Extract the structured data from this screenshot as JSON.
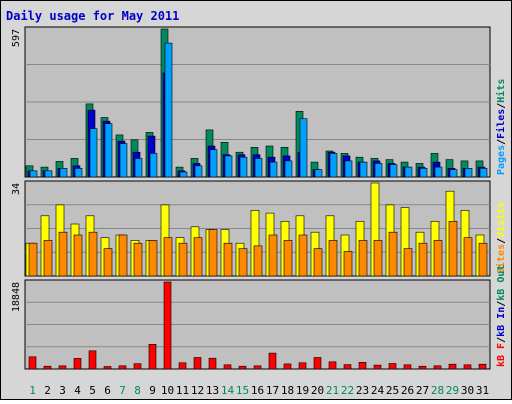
{
  "title": "Daily usage for May 2011",
  "colors": {
    "background": "#d6d6d6",
    "plot_bg": "#c0c0c0",
    "title": "#0000cc",
    "pages": "#00a0ff",
    "files": "#0000cc",
    "hits": "#008a5e",
    "visits": "#ffff00",
    "sites": "#ff8800",
    "kb_out": "#008a5e",
    "kb_in": "#0000cc",
    "kb_f": "#ff0000",
    "weekend_label": "#008a5e",
    "weekday_label": "#000000"
  },
  "chart_data": {
    "type": "bar",
    "title": "Daily usage for May 2011",
    "categories": [
      "1",
      "2",
      "3",
      "4",
      "5",
      "6",
      "7",
      "8",
      "9",
      "10",
      "11",
      "12",
      "13",
      "14",
      "15",
      "16",
      "17",
      "18",
      "19",
      "20",
      "21",
      "22",
      "23",
      "24",
      "25",
      "26",
      "27",
      "28",
      "29",
      "30",
      "31"
    ],
    "weekend_days": [
      "1",
      "7",
      "8",
      "14",
      "15",
      "21",
      "22",
      "28",
      "29"
    ],
    "panels": [
      {
        "id": "hits_files_pages",
        "max_label": "597",
        "ylim": [
          0,
          597
        ],
        "legend": [
          {
            "text": "Pages",
            "color_key": "pages"
          },
          {
            "text": "/",
            "color_key": "weekday_label"
          },
          {
            "text": "Files",
            "color_key": "files"
          },
          {
            "text": "/",
            "color_key": "weekday_label"
          },
          {
            "text": "Hits",
            "color_key": "hits"
          }
        ],
        "series": [
          {
            "name": "Hits",
            "color_key": "hits",
            "values": [
              45,
              40,
              63,
              75,
              295,
              240,
              170,
              150,
              180,
              597,
              40,
              75,
              190,
              140,
              100,
              120,
              125,
              120,
              265,
              60,
              105,
              95,
              80,
              75,
              70,
              60,
              55,
              95,
              70,
              65,
              65
            ]
          },
          {
            "name": "Files",
            "color_key": "files",
            "values": [
              25,
              25,
              35,
              45,
              270,
              225,
              145,
              100,
              165,
              420,
              25,
              55,
              125,
              90,
              90,
              90,
              80,
              85,
              100,
              30,
              100,
              85,
              60,
              65,
              55,
              40,
              40,
              60,
              35,
              35,
              40
            ]
          },
          {
            "name": "Pages",
            "color_key": "pages",
            "values": [
              25,
              25,
              35,
              35,
              195,
              215,
              135,
              75,
              95,
              540,
              20,
              45,
              110,
              85,
              80,
              75,
              60,
              65,
              235,
              30,
              95,
              65,
              60,
              55,
              50,
              40,
              35,
              40,
              30,
              35,
              35
            ]
          }
        ]
      },
      {
        "id": "visits_sites",
        "max_label": "34",
        "ylim": [
          0,
          34
        ],
        "legend": [
          {
            "text": "Sites",
            "color_key": "sites"
          },
          {
            "text": "/",
            "color_key": "weekday_label"
          },
          {
            "text": "Visits",
            "color_key": "visits"
          }
        ],
        "series": [
          {
            "name": "Visits",
            "color_key": "visits",
            "values": [
              12,
              22,
              26,
              19,
              22,
              14,
              15,
              13,
              13,
              26,
              14,
              18,
              17,
              17,
              12,
              24,
              23,
              20,
              22,
              16,
              22,
              15,
              20,
              34,
              26,
              25,
              16,
              20,
              31,
              24,
              15
            ]
          },
          {
            "name": "Sites",
            "color_key": "sites",
            "values": [
              12,
              13,
              16,
              15,
              16,
              10,
              15,
              12,
              13,
              14,
              12,
              14,
              17,
              12,
              10,
              11,
              15,
              13,
              15,
              10,
              13,
              9,
              13,
              13,
              16,
              10,
              12,
              13,
              20,
              14,
              12
            ]
          }
        ]
      },
      {
        "id": "kb",
        "max_label": "18848",
        "ylim": [
          0,
          18848
        ],
        "legend": [
          {
            "text": "kB F",
            "color_key": "kb_f"
          },
          {
            "text": "/",
            "color_key": "weekday_label"
          },
          {
            "text": "kB In",
            "color_key": "kb_in"
          },
          {
            "text": "/",
            "color_key": "weekday_label"
          },
          {
            "text": "kB Out",
            "color_key": "kb_out"
          }
        ],
        "series": [
          {
            "name": "kB F",
            "color_key": "kb_f",
            "values": [
              2650,
              600,
              700,
              2300,
              3950,
              550,
              700,
              1150,
              5350,
              18848,
              1350,
              2500,
              2350,
              900,
              600,
              700,
              3450,
              1100,
              1350,
              2500,
              1550,
              950,
              1450,
              850,
              1200,
              900,
              600,
              700,
              1050,
              900,
              1050
            ]
          }
        ]
      }
    ]
  }
}
